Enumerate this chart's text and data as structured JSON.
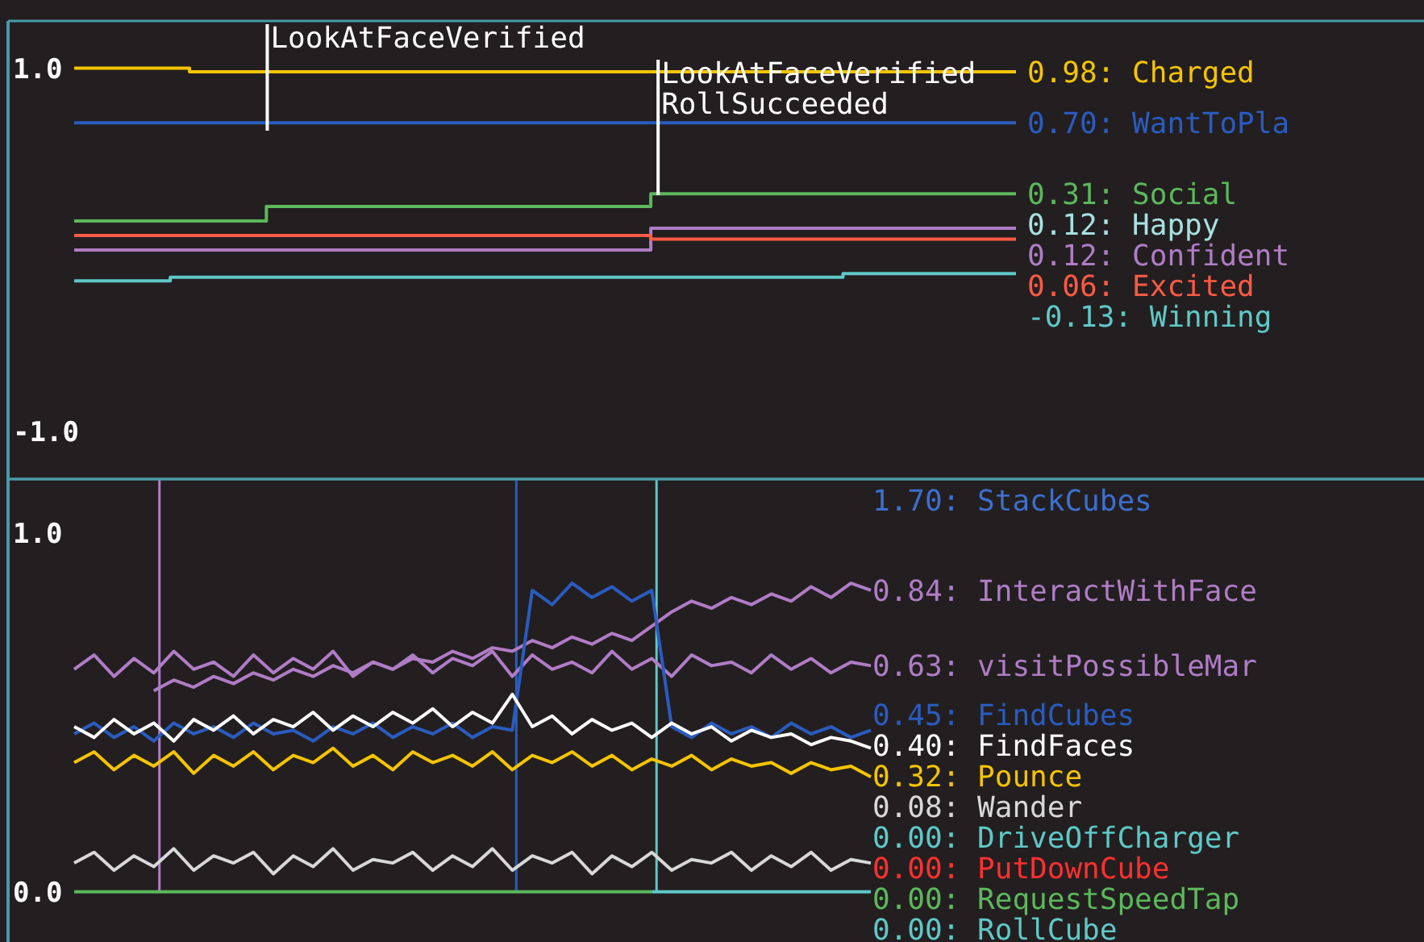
{
  "chart_data": [
    {
      "type": "step",
      "ylim": [
        -1.26,
        1.26
      ],
      "yticks": [
        {
          "value": 1,
          "label": "1.0"
        },
        {
          "value": -1,
          "label": "-1.0"
        }
      ],
      "tick_labels": "y",
      "categories": [
        null,
        null,
        null,
        null,
        null,
        null,
        null,
        null,
        null,
        null,
        null,
        null,
        null,
        null,
        null,
        null,
        null,
        null,
        null,
        null,
        null,
        null,
        null,
        null,
        null,
        null,
        null,
        null,
        null,
        null,
        null,
        null,
        null,
        null,
        null,
        null,
        null,
        null,
        null,
        null,
        null,
        null,
        null,
        null,
        null,
        null,
        null,
        null,
        null,
        null
      ],
      "annotations": [
        "LookAtFaceVerified",
        "LookAtFaceVerified",
        "RollSucceeded"
      ],
      "series": [
        {
          "name": "0.98: Charged",
          "color": "#f5c400",
          "values": [
            1.0,
            1.0,
            1.0,
            1.0,
            1.0,
            1.0,
            0.98,
            0.98,
            0.98,
            0.98,
            0.98,
            0.98,
            0.98,
            0.98,
            0.98,
            0.98,
            0.98,
            0.98,
            0.98,
            0.98,
            0.98,
            0.98,
            0.98,
            0.98,
            0.98,
            0.98,
            0.98,
            0.98,
            0.98,
            0.98,
            0.98,
            0.98,
            0.98,
            0.98,
            0.98,
            0.98,
            0.98,
            0.98,
            0.98,
            0.98,
            0.98,
            0.98,
            0.98,
            0.98,
            0.98,
            0.98,
            0.98,
            0.98,
            0.98,
            0.98
          ]
        },
        {
          "name": "0.70: WantToPla",
          "color": "#2a5cc0",
          "values": [
            0.7,
            0.7,
            0.7,
            0.7,
            0.7,
            0.7,
            0.7,
            0.7,
            0.7,
            0.7,
            0.7,
            0.7,
            0.7,
            0.7,
            0.7,
            0.7,
            0.7,
            0.7,
            0.7,
            0.7,
            0.7,
            0.7,
            0.7,
            0.7,
            0.7,
            0.7,
            0.7,
            0.7,
            0.7,
            0.7,
            0.7,
            0.7,
            0.7,
            0.7,
            0.7,
            0.7,
            0.7,
            0.7,
            0.7,
            0.7,
            0.7,
            0.7,
            0.7,
            0.7,
            0.7,
            0.7,
            0.7,
            0.7,
            0.7,
            0.7
          ]
        },
        {
          "name": "0.31: Social",
          "color": "#5cb85c",
          "values": [
            0.16,
            0.16,
            0.16,
            0.16,
            0.16,
            0.16,
            0.16,
            0.16,
            0.16,
            0.16,
            0.24,
            0.24,
            0.24,
            0.24,
            0.24,
            0.24,
            0.24,
            0.24,
            0.24,
            0.24,
            0.24,
            0.24,
            0.24,
            0.24,
            0.24,
            0.24,
            0.24,
            0.24,
            0.24,
            0.24,
            0.31,
            0.31,
            0.31,
            0.31,
            0.31,
            0.31,
            0.31,
            0.31,
            0.31,
            0.31,
            0.31,
            0.31,
            0.31,
            0.31,
            0.31,
            0.31,
            0.31,
            0.31,
            0.31,
            0.31
          ]
        },
        {
          "name": "0.12: Happy",
          "color": "#a8e0e0",
          "values": [
            null,
            null,
            null,
            null,
            null,
            null,
            null,
            null,
            null,
            null,
            null,
            null,
            null,
            null,
            null,
            null,
            null,
            null,
            null,
            null,
            null,
            null,
            null,
            null,
            null,
            null,
            null,
            null,
            null,
            null,
            null,
            null,
            null,
            null,
            null,
            null,
            null,
            null,
            null,
            null,
            null,
            null,
            null,
            null,
            null,
            null,
            null,
            null,
            null,
            null
          ]
        },
        {
          "name": "0.12: Confident",
          "color": "#b07cc6",
          "values": [
            0,
            0,
            0,
            0,
            0,
            0,
            0,
            0,
            0,
            0,
            0,
            0,
            0,
            0,
            0,
            0,
            0,
            0,
            0,
            0,
            0,
            0,
            0,
            0,
            0,
            0,
            0,
            0,
            0,
            0,
            0.12,
            0.12,
            0.12,
            0.12,
            0.12,
            0.12,
            0.12,
            0.12,
            0.12,
            0.12,
            0.12,
            0.12,
            0.12,
            0.12,
            0.12,
            0.12,
            0.12,
            0.12,
            0.12,
            0.12
          ]
        },
        {
          "name": "0.06: Excited",
          "color": "#ff5a44",
          "values": [
            0.08,
            0.08,
            0.08,
            0.08,
            0.08,
            0.08,
            0.08,
            0.08,
            0.08,
            0.08,
            0.08,
            0.08,
            0.08,
            0.08,
            0.08,
            0.08,
            0.08,
            0.08,
            0.08,
            0.08,
            0.08,
            0.08,
            0.08,
            0.08,
            0.08,
            0.08,
            0.08,
            0.08,
            0.08,
            0.08,
            0.06,
            0.06,
            0.06,
            0.06,
            0.06,
            0.06,
            0.06,
            0.06,
            0.06,
            0.06,
            0.06,
            0.06,
            0.06,
            0.06,
            0.06,
            0.06,
            0.06,
            0.06,
            0.06,
            0.06
          ]
        },
        {
          "name": "-0.13: Winning",
          "color": "#5fc8c8",
          "values": [
            -0.17,
            -0.17,
            -0.17,
            -0.17,
            -0.17,
            -0.15,
            -0.15,
            -0.15,
            -0.15,
            -0.15,
            -0.15,
            -0.15,
            -0.15,
            -0.15,
            -0.15,
            -0.15,
            -0.15,
            -0.15,
            -0.15,
            -0.15,
            -0.15,
            -0.15,
            -0.15,
            -0.15,
            -0.15,
            -0.15,
            -0.15,
            -0.15,
            -0.15,
            -0.15,
            -0.15,
            -0.15,
            -0.15,
            -0.15,
            -0.15,
            -0.15,
            -0.15,
            -0.15,
            -0.15,
            -0.15,
            -0.13,
            -0.13,
            -0.13,
            -0.13,
            -0.13,
            -0.13,
            -0.13,
            -0.13,
            -0.13,
            -0.13
          ]
        }
      ]
    },
    {
      "type": "line",
      "ylim": [
        -0.14,
        1.15
      ],
      "yticks": [
        {
          "value": 1,
          "label": "1.0"
        },
        {
          "value": 0,
          "label": "0.0"
        }
      ],
      "tick_labels": "y",
      "categories": [
        null,
        null,
        null,
        null,
        null,
        null,
        null,
        null,
        null,
        null,
        null,
        null,
        null,
        null,
        null,
        null,
        null,
        null,
        null,
        null,
        null,
        null,
        null,
        null,
        null,
        null,
        null,
        null,
        null,
        null,
        null,
        null,
        null,
        null,
        null,
        null,
        null,
        null,
        null,
        null,
        null
      ],
      "series": [
        {
          "name": "1.70: StackCubes",
          "color": "#3c6fd0",
          "values": [
            null,
            null,
            null,
            null,
            null,
            null,
            null,
            null,
            null,
            null,
            null,
            null,
            null,
            null,
            null,
            null,
            null,
            null,
            null,
            null,
            null,
            null,
            null,
            null,
            null,
            null,
            null,
            null,
            null,
            null,
            null,
            null,
            null,
            null,
            null,
            null,
            null,
            null,
            null,
            null,
            null
          ]
        },
        {
          "name": "0.84: InteractWithFace",
          "color": "#b07cc6",
          "values": [
            null,
            null,
            null,
            null,
            0.56,
            0.59,
            0.57,
            0.6,
            0.58,
            0.61,
            0.59,
            0.62,
            0.6,
            0.63,
            0.61,
            0.64,
            0.62,
            0.65,
            0.64,
            0.67,
            0.65,
            0.68,
            0.67,
            0.7,
            0.68,
            0.71,
            0.69,
            0.72,
            0.7,
            0.74,
            0.78,
            0.81,
            0.79,
            0.82,
            0.8,
            0.83,
            0.81,
            0.85,
            0.82,
            0.86,
            0.84
          ]
        },
        {
          "name": "0.63: visitPossibleMar",
          "color": "#b07cc6",
          "values": [
            0.62,
            0.66,
            0.6,
            0.65,
            0.61,
            0.67,
            0.62,
            0.64,
            0.6,
            0.66,
            0.61,
            0.65,
            0.62,
            0.67,
            0.6,
            0.64,
            0.62,
            0.66,
            0.61,
            0.65,
            0.63,
            0.67,
            0.6,
            0.66,
            0.62,
            0.64,
            0.61,
            0.67,
            0.62,
            0.65,
            0.6,
            0.66,
            0.63,
            0.64,
            0.61,
            0.66,
            0.62,
            0.65,
            0.61,
            0.64,
            0.63
          ]
        },
        {
          "name": "0.45: FindCubes",
          "color": "#2a5cc0",
          "values": [
            0.44,
            0.47,
            0.43,
            0.46,
            0.42,
            0.47,
            0.44,
            0.46,
            0.43,
            0.47,
            0.44,
            0.45,
            0.42,
            0.46,
            0.44,
            0.47,
            0.43,
            0.46,
            0.44,
            0.47,
            0.43,
            0.46,
            0.45,
            0.84,
            0.8,
            0.86,
            0.82,
            0.85,
            0.81,
            0.84,
            0.46,
            0.43,
            0.47,
            0.44,
            0.46,
            0.43,
            0.47,
            0.44,
            0.46,
            0.43,
            0.45
          ]
        },
        {
          "name": "0.40: FindFaces",
          "color": "#ffffff",
          "values": [
            0.46,
            0.43,
            0.48,
            0.44,
            0.47,
            0.42,
            0.48,
            0.45,
            0.49,
            0.44,
            0.48,
            0.46,
            0.5,
            0.45,
            0.49,
            0.46,
            0.5,
            0.47,
            0.51,
            0.46,
            0.5,
            0.47,
            0.55,
            0.46,
            0.49,
            0.44,
            0.48,
            0.45,
            0.47,
            0.43,
            0.47,
            0.44,
            0.46,
            0.42,
            0.45,
            0.43,
            0.44,
            0.41,
            0.43,
            0.42,
            0.4
          ]
        },
        {
          "name": "0.32: Pounce",
          "color": "#f5c400",
          "values": [
            0.36,
            0.39,
            0.34,
            0.38,
            0.35,
            0.39,
            0.33,
            0.38,
            0.35,
            0.39,
            0.34,
            0.38,
            0.36,
            0.4,
            0.35,
            0.38,
            0.34,
            0.39,
            0.36,
            0.38,
            0.35,
            0.39,
            0.34,
            0.38,
            0.36,
            0.39,
            0.35,
            0.38,
            0.34,
            0.37,
            0.35,
            0.38,
            0.34,
            0.37,
            0.35,
            0.36,
            0.33,
            0.36,
            0.34,
            0.35,
            0.32
          ]
        },
        {
          "name": "0.08: Wander",
          "color": "#d8d8d8",
          "values": [
            0.08,
            0.11,
            0.06,
            0.1,
            0.07,
            0.12,
            0.06,
            0.1,
            0.08,
            0.11,
            0.05,
            0.1,
            0.07,
            0.12,
            0.06,
            0.09,
            0.08,
            0.11,
            0.06,
            0.1,
            0.07,
            0.12,
            0.06,
            0.1,
            0.08,
            0.11,
            0.05,
            0.1,
            0.07,
            0.11,
            0.06,
            0.09,
            0.08,
            0.11,
            0.06,
            0.1,
            0.07,
            0.11,
            0.06,
            0.09,
            0.08
          ]
        },
        {
          "name": "0.00: DriveOffCharger",
          "color": "#5fc8c8",
          "values": [
            null,
            null,
            null,
            null,
            null,
            null,
            null,
            null,
            null,
            null,
            null,
            null,
            null,
            null,
            null,
            null,
            null,
            null,
            null,
            null,
            null,
            null,
            null,
            null,
            null,
            null,
            null,
            null,
            null,
            null,
            null,
            null,
            null,
            null,
            null,
            null,
            null,
            null,
            null,
            null,
            null
          ]
        },
        {
          "name": "0.00: PutDownCube",
          "color": "#ff3030",
          "values": [
            null,
            null,
            null,
            null,
            null,
            null,
            null,
            null,
            null,
            null,
            null,
            null,
            null,
            null,
            null,
            null,
            null,
            null,
            null,
            null,
            null,
            null,
            null,
            null,
            null,
            null,
            null,
            null,
            null,
            null,
            null,
            null,
            null,
            null,
            null,
            null,
            null,
            null,
            null,
            null,
            null
          ]
        },
        {
          "name": "0.00: RequestSpeedTap",
          "color": "#5cb85c",
          "values": [
            0,
            0,
            0,
            0,
            0,
            0,
            0,
            0,
            0,
            0,
            0,
            0,
            0,
            0,
            0,
            0,
            0,
            0,
            0,
            0,
            0,
            0,
            0,
            0,
            0,
            0,
            0,
            0,
            0,
            0,
            null,
            null,
            null,
            null,
            null,
            null,
            null,
            null,
            null,
            null,
            null
          ]
        },
        {
          "name": "0.00: RollCube",
          "color": "#5fc8c8",
          "values": [
            null,
            null,
            null,
            null,
            null,
            null,
            null,
            null,
            null,
            null,
            null,
            null,
            null,
            null,
            null,
            null,
            null,
            null,
            null,
            null,
            null,
            null,
            null,
            null,
            null,
            null,
            null,
            null,
            null,
            0,
            0,
            0,
            0,
            0,
            0,
            0,
            0,
            0,
            0,
            0,
            0
          ]
        }
      ]
    }
  ]
}
